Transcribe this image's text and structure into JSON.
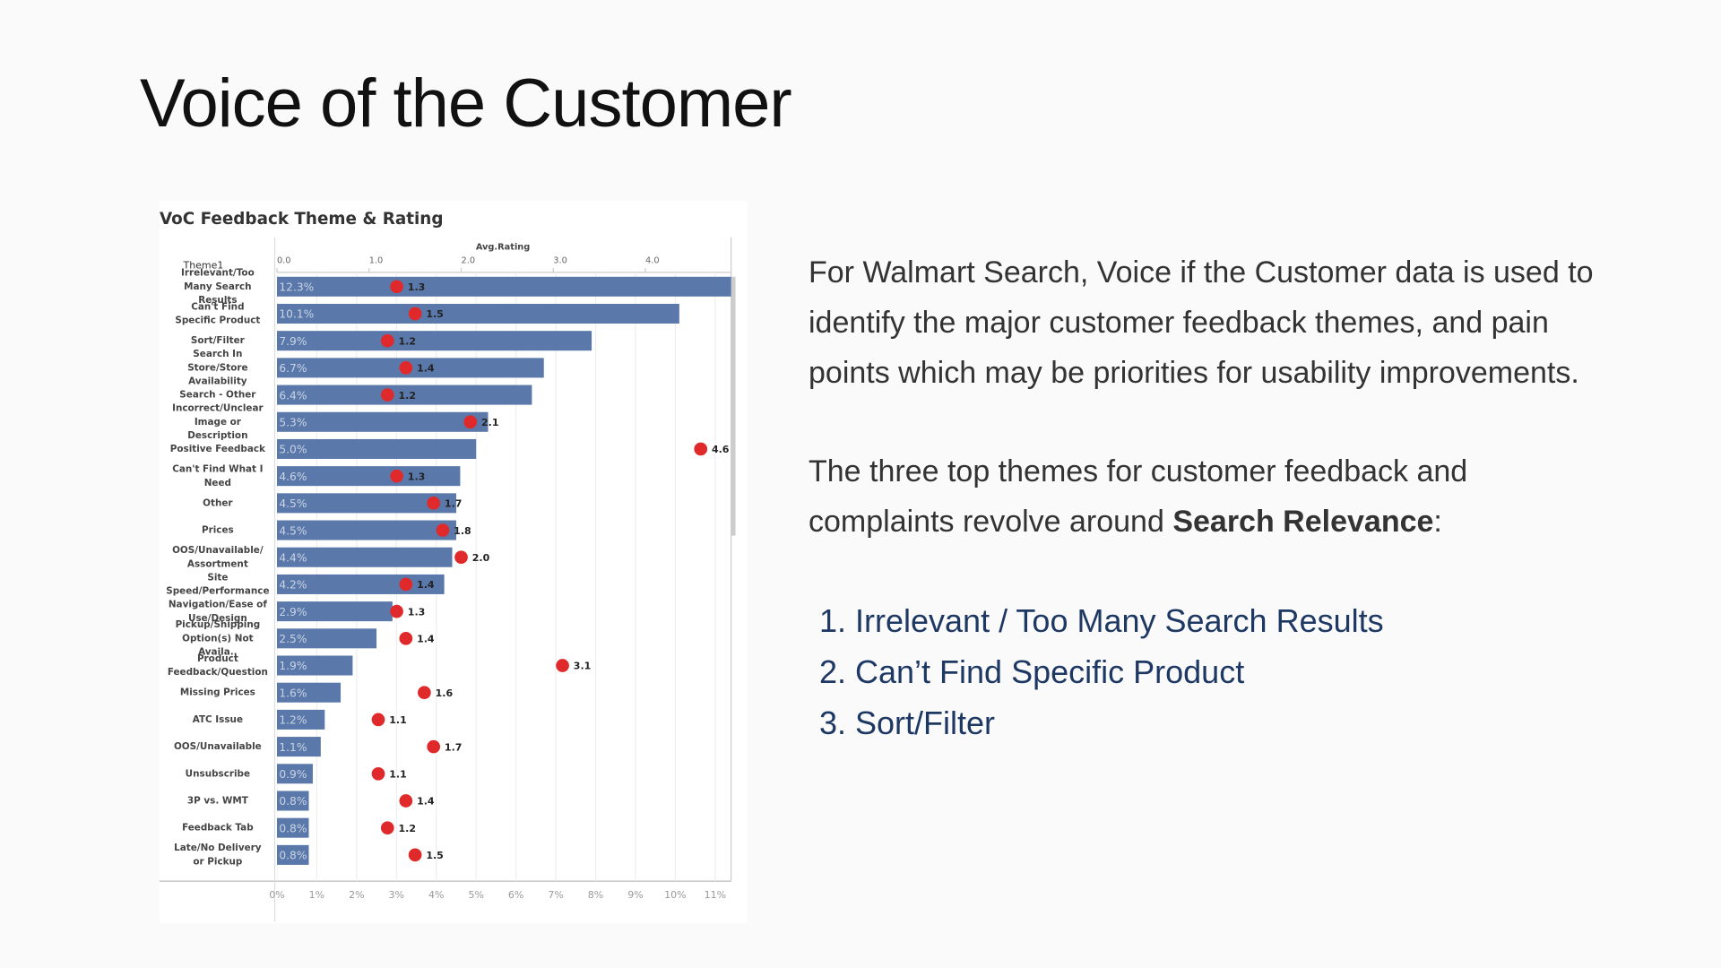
{
  "slide": {
    "title": "Voice of the Customer",
    "paragraph": "For Walmart Search, Voice if the Customer data is used to identify the major customer feedback themes, and pain points which may be priorities for usability improvements.",
    "lead": [
      "The three top themes for customer feedback and complaints revolve around ",
      "Search Relevance",
      ":"
    ],
    "list": [
      "Irrelevant / Too Many Search Results",
      "Can’t Find Specific Product",
      "Sort/Filter"
    ]
  },
  "chart_data": {
    "type": "bar",
    "orientation": "horizontal",
    "title": "VoC Feedback Theme & Rating",
    "category_header": "Theme1",
    "x2_label": "Avg.Rating",
    "categories": [
      "Irrelevant/Too Many Search Results",
      "Can't Find Specific Product",
      "Sort/Filter",
      "Search In Store/Store Availability",
      "Search - Other",
      "Incorrect/Unclear Image or Description",
      "Positive Feedback",
      "Can't Find What I Need",
      "Other",
      "Prices",
      "OOS/Unavailable/ Assortment",
      "Site Speed/Performance",
      "Navigation/Ease of Use/Design",
      "Pickup/Shipping Option(s) Not Availa..",
      "Product Feedback/Question",
      "Missing Prices",
      "ATC Issue",
      "OOS/Unavailable",
      "Unsubscribe",
      "3P vs. WMT",
      "Feedback Tab",
      "Late/No Delivery or Pickup"
    ],
    "series": [
      {
        "color": "#5a79aa",
        "values": [
          12.3,
          10.1,
          7.9,
          6.7,
          6.4,
          5.3,
          5.0,
          4.6,
          4.5,
          4.5,
          4.4,
          4.2,
          2.9,
          2.5,
          1.9,
          1.6,
          1.2,
          1.1,
          0.9,
          0.8,
          0.8,
          0.8
        ],
        "value_labels": [
          "12.3%",
          "10.1%",
          "7.9%",
          "6.7%",
          "6.4%",
          "5.3%",
          "5.0%",
          "4.6%",
          "4.5%",
          "4.5%",
          "4.4%",
          "4.2%",
          "2.9%",
          "2.5%",
          "1.9%",
          "1.6%",
          "1.2%",
          "1.1%",
          "0.9%",
          "0.8%",
          "0.8%",
          "0.8%"
        ]
      },
      {
        "color": "#e0292b",
        "axis": "x2",
        "values": [
          1.3,
          1.5,
          1.2,
          1.4,
          1.2,
          2.1,
          4.6,
          1.3,
          1.7,
          1.8,
          2.0,
          1.4,
          1.3,
          1.4,
          3.1,
          1.6,
          1.1,
          1.7,
          1.1,
          1.4,
          1.2,
          1.5
        ],
        "value_labels": [
          "1.3",
          "1.5",
          "1.2",
          "1.4",
          "1.2",
          "2.1",
          "4.6",
          "1.3",
          "1.7",
          "1.8",
          "2.0",
          "1.4",
          "1.3",
          "1.4",
          "3.1",
          "1.6",
          "1.1",
          "1.7",
          "1.1",
          "1.4",
          "1.2",
          "1.5"
        ]
      }
    ],
    "xlim": [
      0,
      11.4
    ],
    "xticks": [
      {
        "value": 0,
        "label": "0%"
      },
      {
        "value": 1,
        "label": "1%"
      },
      {
        "value": 2,
        "label": "2%"
      },
      {
        "value": 3,
        "label": "3%"
      },
      {
        "value": 4,
        "label": "4%"
      },
      {
        "value": 5,
        "label": "5%"
      },
      {
        "value": 6,
        "label": "6%"
      },
      {
        "value": 7,
        "label": "7%"
      },
      {
        "value": 8,
        "label": "8%"
      },
      {
        "value": 9,
        "label": "9%"
      },
      {
        "value": 10,
        "label": "10%"
      },
      {
        "value": 11,
        "label": "11%"
      }
    ],
    "x2lim": [
      0,
      4.93
    ],
    "x2ticks": [
      {
        "value": 0,
        "label": "0.0"
      },
      {
        "value": 1,
        "label": "1.0"
      },
      {
        "value": 2,
        "label": "2.0"
      },
      {
        "value": 3,
        "label": "3.0"
      },
      {
        "value": 4,
        "label": "4.0"
      }
    ],
    "grid": true
  }
}
